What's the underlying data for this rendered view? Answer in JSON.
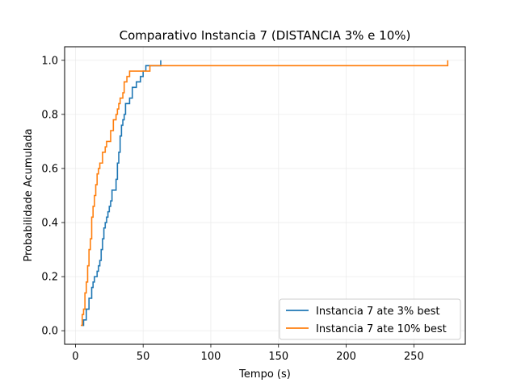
{
  "chart_data": {
    "type": "line",
    "title": "Comparativo Instancia 7 (DISTANCIA 3% e 10%)",
    "xlabel": "Tempo (s)",
    "ylabel": "Probabilidade Acumulada",
    "xlim": [
      -8,
      288
    ],
    "ylim": [
      -0.05,
      1.05
    ],
    "xticks": [
      0,
      50,
      100,
      150,
      200,
      250
    ],
    "yticks": [
      0.0,
      0.2,
      0.4,
      0.6,
      0.8,
      1.0
    ],
    "ytick_labels": [
      "0.0",
      "0.2",
      "0.4",
      "0.6",
      "0.8",
      "1.0"
    ],
    "grid": true,
    "legend_position": "lower-right",
    "step": true,
    "series": [
      {
        "name": "Instancia 7 ate 3% best",
        "color": "#1f77b4",
        "x": [
          5,
          6,
          8,
          10,
          12,
          13,
          14,
          16,
          17,
          18,
          19,
          20,
          21,
          22,
          23,
          24,
          25,
          26,
          27,
          30,
          31,
          32,
          33,
          34,
          35,
          36,
          37,
          40,
          42,
          45,
          48,
          50,
          52,
          55,
          60,
          63
        ],
        "y": [
          0.02,
          0.04,
          0.08,
          0.12,
          0.16,
          0.18,
          0.2,
          0.22,
          0.24,
          0.26,
          0.3,
          0.34,
          0.38,
          0.4,
          0.42,
          0.44,
          0.46,
          0.48,
          0.52,
          0.56,
          0.62,
          0.66,
          0.72,
          0.76,
          0.78,
          0.8,
          0.84,
          0.86,
          0.9,
          0.92,
          0.94,
          0.96,
          0.98,
          0.98,
          0.98,
          1.0
        ]
      },
      {
        "name": "Instancia 7 ate 10% best",
        "color": "#ff7f0e",
        "x": [
          4,
          5,
          6,
          7,
          8,
          9,
          10,
          11,
          12,
          13,
          14,
          15,
          16,
          17,
          18,
          20,
          22,
          23,
          24,
          26,
          28,
          30,
          31,
          32,
          33,
          34,
          35,
          36,
          37,
          38,
          40,
          42,
          45,
          50,
          55,
          275
        ],
        "y": [
          0.02,
          0.06,
          0.08,
          0.14,
          0.18,
          0.24,
          0.3,
          0.34,
          0.42,
          0.46,
          0.5,
          0.54,
          0.58,
          0.6,
          0.62,
          0.66,
          0.68,
          0.7,
          0.7,
          0.74,
          0.78,
          0.8,
          0.82,
          0.84,
          0.86,
          0.86,
          0.88,
          0.92,
          0.92,
          0.94,
          0.96,
          0.96,
          0.96,
          0.96,
          0.98,
          1.0
        ]
      }
    ]
  }
}
